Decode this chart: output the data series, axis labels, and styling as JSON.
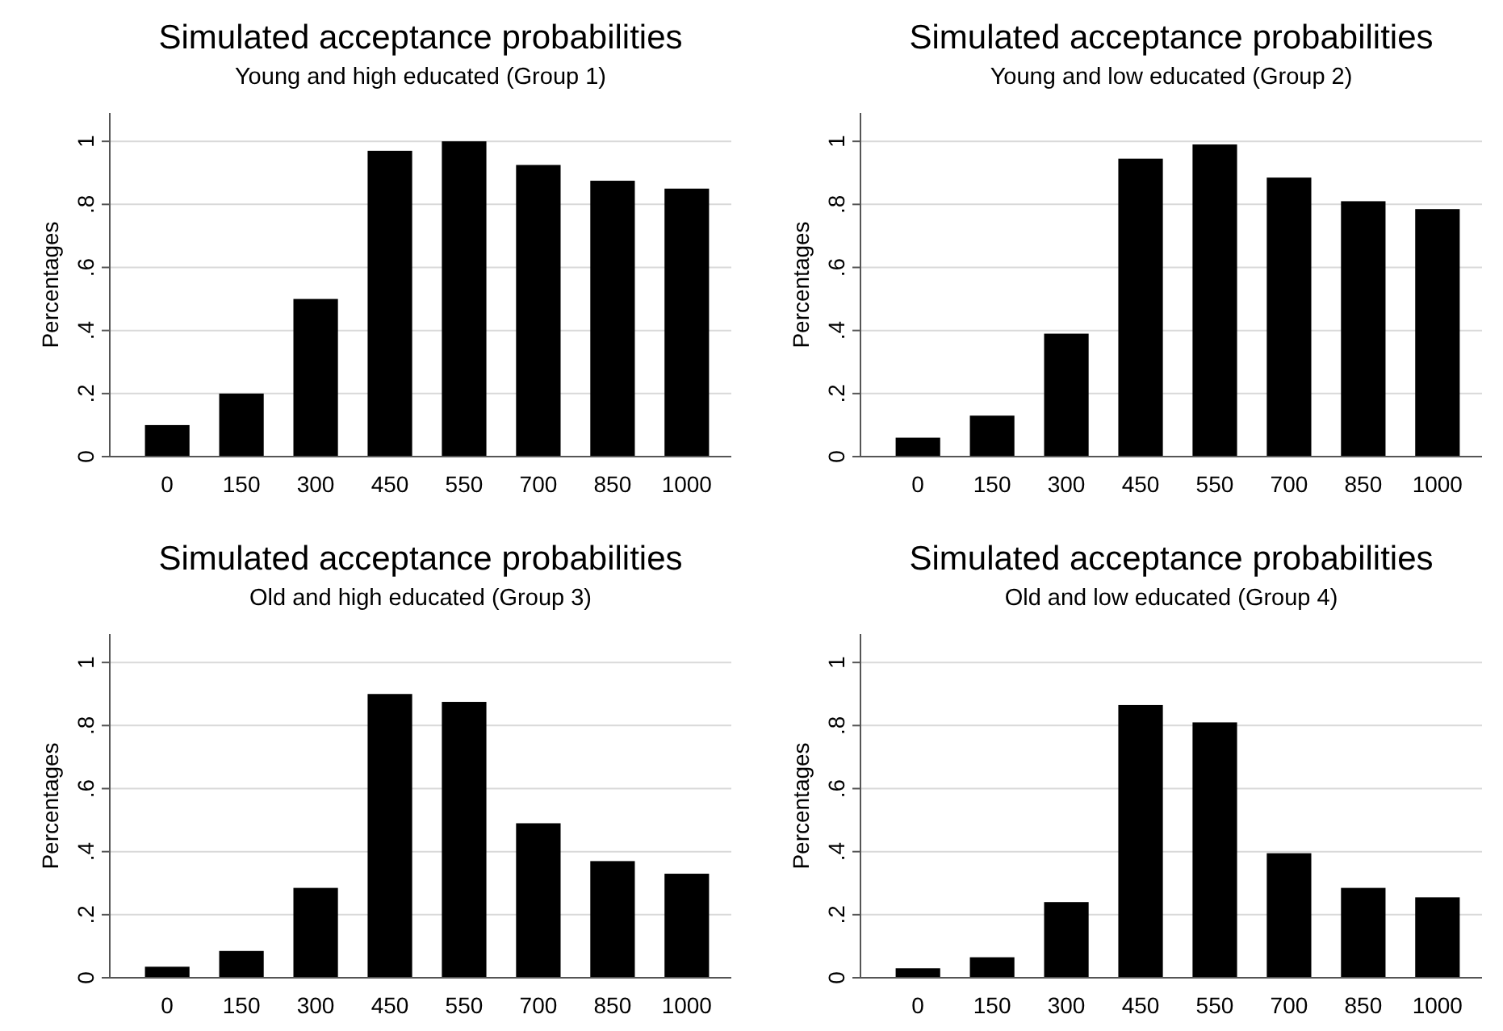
{
  "chart_data": [
    {
      "type": "bar",
      "title": "Simulated acceptance probabilities",
      "subtitle": "Young and high educated (Group 1)",
      "ylabel": "Percentages",
      "categories": [
        "0",
        "150",
        "300",
        "450",
        "550",
        "700",
        "850",
        "1000"
      ],
      "values": [
        0.1,
        0.2,
        0.5,
        0.97,
        1.0,
        0.925,
        0.875,
        0.85
      ],
      "color": "#000000",
      "ylim": [
        0,
        1.09
      ],
      "yticks": [
        {
          "value": 0,
          "label": "0"
        },
        {
          "value": 0.2,
          "label": ".2"
        },
        {
          "value": 0.4,
          "label": ".4"
        },
        {
          "value": 0.6,
          "label": ".6"
        },
        {
          "value": 0.8,
          "label": ".8"
        },
        {
          "value": 1,
          "label": "1"
        }
      ],
      "grid": "y"
    },
    {
      "type": "bar",
      "title": "Simulated acceptance probabilities",
      "subtitle": "Young and low educated (Group 2)",
      "ylabel": "Percentages",
      "categories": [
        "0",
        "150",
        "300",
        "450",
        "550",
        "700",
        "850",
        "1000"
      ],
      "values": [
        0.06,
        0.13,
        0.39,
        0.945,
        0.99,
        0.885,
        0.81,
        0.785
      ],
      "color": "#000000",
      "ylim": [
        0,
        1.09
      ],
      "yticks": [
        {
          "value": 0,
          "label": "0"
        },
        {
          "value": 0.2,
          "label": ".2"
        },
        {
          "value": 0.4,
          "label": ".4"
        },
        {
          "value": 0.6,
          "label": ".6"
        },
        {
          "value": 0.8,
          "label": ".8"
        },
        {
          "value": 1,
          "label": "1"
        }
      ],
      "grid": "y"
    },
    {
      "type": "bar",
      "title": "Simulated acceptance probabilities",
      "subtitle": "Old and high educated (Group 3)",
      "ylabel": "Percentages",
      "categories": [
        "0",
        "150",
        "300",
        "450",
        "550",
        "700",
        "850",
        "1000"
      ],
      "values": [
        0.035,
        0.085,
        0.285,
        0.9,
        0.875,
        0.49,
        0.37,
        0.33
      ],
      "color": "#000000",
      "ylim": [
        0,
        1.09
      ],
      "yticks": [
        {
          "value": 0,
          "label": "0"
        },
        {
          "value": 0.2,
          "label": ".2"
        },
        {
          "value": 0.4,
          "label": ".4"
        },
        {
          "value": 0.6,
          "label": ".6"
        },
        {
          "value": 0.8,
          "label": ".8"
        },
        {
          "value": 1,
          "label": "1"
        }
      ],
      "grid": "y"
    },
    {
      "type": "bar",
      "title": "Simulated acceptance probabilities",
      "subtitle": "Old and low educated (Group 4)",
      "ylabel": "Percentages",
      "categories": [
        "0",
        "150",
        "300",
        "450",
        "550",
        "700",
        "850",
        "1000"
      ],
      "values": [
        0.03,
        0.065,
        0.24,
        0.865,
        0.81,
        0.395,
        0.285,
        0.255
      ],
      "color": "#000000",
      "ylim": [
        0,
        1.09
      ],
      "yticks": [
        {
          "value": 0,
          "label": "0"
        },
        {
          "value": 0.2,
          "label": ".2"
        },
        {
          "value": 0.4,
          "label": ".4"
        },
        {
          "value": 0.6,
          "label": ".6"
        },
        {
          "value": 0.8,
          "label": ".8"
        },
        {
          "value": 1,
          "label": "1"
        }
      ],
      "grid": "y"
    }
  ]
}
